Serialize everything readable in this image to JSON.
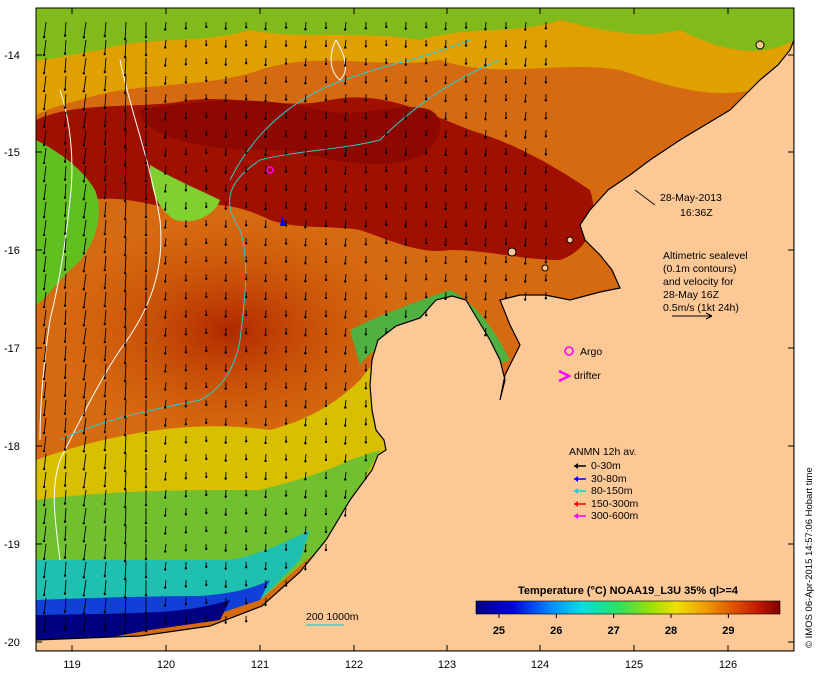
{
  "map": {
    "date": "28-May-2013",
    "time": "16:36Z",
    "altimetry": {
      "line1": "Altimetric sealevel",
      "line2": "(0.1m contours)",
      "line3": "and velocity for",
      "line4": "28-May 16Z",
      "line5": "0.5m/s (1kt 24h)"
    },
    "argo_label": "Argo",
    "drifter_label": "drifter",
    "anmn": {
      "title": "ANMN 12h av.",
      "items": [
        {
          "label": "0-30m",
          "color": "#000000"
        },
        {
          "label": "30-80m",
          "color": "#0000ff"
        },
        {
          "label": "80-150m",
          "color": "#00d8d8"
        },
        {
          "label": "150-300m",
          "color": "#ff0000"
        },
        {
          "label": "300-600m",
          "color": "#ff00ff"
        }
      ]
    },
    "depth_label": "200  1000m",
    "colorbar": {
      "title": "Temperature (°C) NOAA19_L3U 35% ql>=4",
      "ticks": [
        "25",
        "26",
        "27",
        "28",
        "29"
      ],
      "min": 24.6,
      "max": 29.9
    },
    "credit": "© IMOS 06-Apr-2015 14:57:06 Hobart time",
    "axes": {
      "x_ticks": [
        "119",
        "120",
        "121",
        "122",
        "123",
        "124",
        "125",
        "126"
      ],
      "y_ticks": [
        "-14",
        "-15",
        "-16",
        "-17",
        "-18",
        "-19",
        "-20"
      ]
    },
    "colors": {
      "land": "#fcc896",
      "warm": "#a01000",
      "coastline": "#000000",
      "contour": "#ffffff",
      "isobath": "#30c8c8",
      "argo": "#ff00ff"
    }
  }
}
